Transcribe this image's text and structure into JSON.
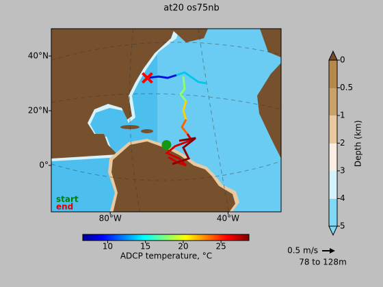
{
  "title": "at20 os75nb",
  "map": {
    "lat_range": [
      -17,
      50
    ],
    "lon_range": [
      -100,
      -22
    ],
    "lat_ticks": [
      {
        "value": 40,
        "label": "40°N"
      },
      {
        "value": 20,
        "label": "20°N"
      },
      {
        "value": 0,
        "label": "0°"
      }
    ],
    "lon_ticks": [
      {
        "value": -80,
        "label": "80°W"
      },
      {
        "value": -40,
        "label": "40°W"
      }
    ],
    "start": {
      "label": "start",
      "lon": -60.9,
      "lat": 7.5
    },
    "end": {
      "label": "end",
      "lon": -67.4,
      "lat": 32
    }
  },
  "depth_colorbar": {
    "label": "Depth (km)",
    "ticks": [
      0,
      0.5,
      1,
      2,
      3,
      4,
      5
    ]
  },
  "temperature_colorbar": {
    "label": "ADCP temperature, °C",
    "range": [
      6.7,
      28.7
    ],
    "ticks": [
      10,
      15,
      20,
      25
    ]
  },
  "vector_scale": {
    "label": "0.5 m/s",
    "depth_range": "78 to 128m"
  }
}
